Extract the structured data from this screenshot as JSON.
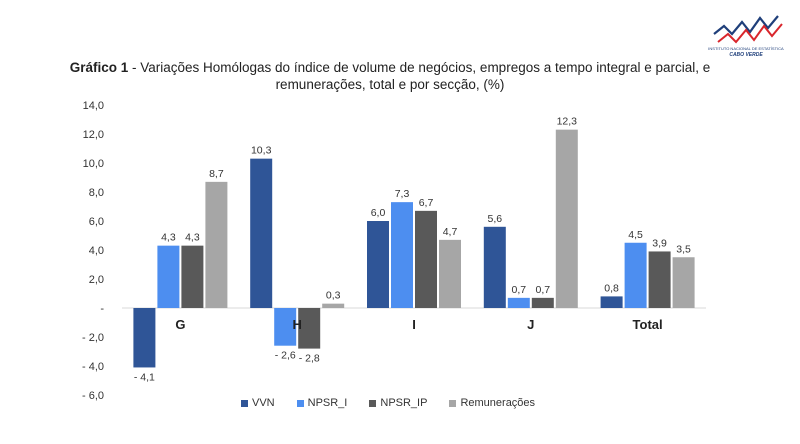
{
  "logo": {
    "line1": "INSTITUTO NACIONAL DE ESTATÍSTICA",
    "line2": "CABO VERDE",
    "colors": {
      "red": "#d9262c",
      "blue": "#1f3f7a"
    }
  },
  "chart_data": {
    "type": "bar",
    "title_prefix": "Gráfico 1",
    "title": "-  Variações Homólogas do índice de volume de negócios, empregos a tempo integral e parcial, e remunerações, total e por secção, (%)",
    "categories": [
      "G",
      "H",
      "I",
      "J",
      "Total"
    ],
    "series": [
      {
        "name": "VVN",
        "color": "#2f5597",
        "values": [
          -4.1,
          10.3,
          6.0,
          5.6,
          0.8
        ],
        "labels": [
          "- 4,1",
          "10,3",
          "6,0",
          "5,6",
          "0,8"
        ]
      },
      {
        "name": "NPSR_I",
        "color": "#4d8ef0",
        "values": [
          4.3,
          -2.6,
          7.3,
          0.7,
          4.5
        ],
        "labels": [
          "4,3",
          "- 2,6",
          "7,3",
          "0,7",
          "4,5"
        ]
      },
      {
        "name": "NPSR_IP",
        "color": "#595959",
        "values": [
          4.3,
          -2.8,
          6.7,
          0.7,
          3.9
        ],
        "labels": [
          "4,3",
          "- 2,8",
          "6,7",
          "0,7",
          "3,9"
        ]
      },
      {
        "name": "Remunerações",
        "color": "#a6a6a6",
        "values": [
          8.7,
          0.3,
          4.7,
          12.3,
          3.5
        ],
        "labels": [
          "8,7",
          "0,3",
          "4,7",
          "12,3",
          "3,5"
        ]
      }
    ],
    "ylim": [
      -6,
      14
    ],
    "yticks": [
      14,
      12,
      10,
      8,
      6,
      4,
      2,
      0,
      -2,
      -4,
      -6
    ],
    "ytick_labels": [
      "14,0",
      "12,0",
      "10,0",
      "8,0",
      "6,0",
      "4,0",
      "2,0",
      "-",
      "- 2,0",
      "- 4,0",
      "- 6,0"
    ],
    "grid": false,
    "legend_position": "bottom"
  }
}
